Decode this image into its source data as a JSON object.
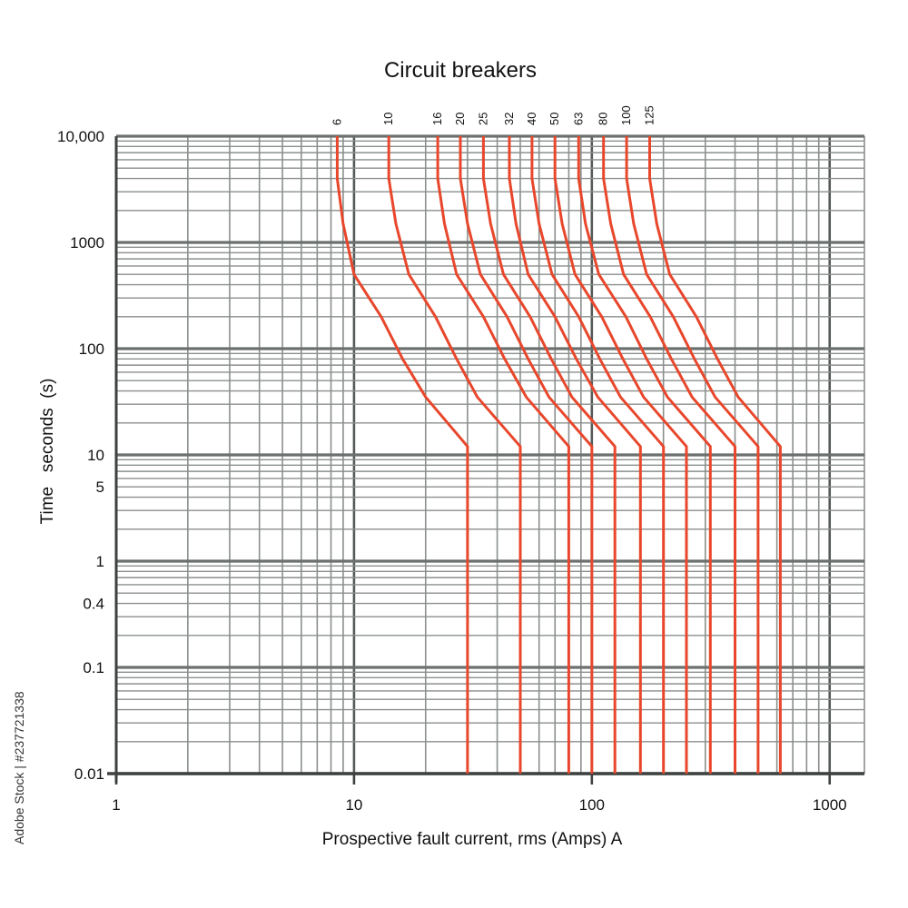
{
  "chart_data": {
    "type": "line",
    "title": "Circuit breakers",
    "xlabel": "Prospective fault current, rms (Amps) A",
    "ylabel": "Time   seconds  (s)",
    "x_scale": "log",
    "y_scale": "log",
    "xlim": [
      1,
      1400
    ],
    "ylim": [
      0.01,
      10000
    ],
    "x_tick_labels": [
      {
        "value": 1,
        "label": "1"
      },
      {
        "value": 10,
        "label": "10"
      },
      {
        "value": 100,
        "label": "100"
      },
      {
        "value": 1000,
        "label": "1000"
      }
    ],
    "y_tick_labels": [
      {
        "value": 10000,
        "label": "10,000"
      },
      {
        "value": 1000,
        "label": "1000"
      },
      {
        "value": 100,
        "label": "100"
      },
      {
        "value": 10,
        "label": "10"
      },
      {
        "value": 5,
        "label": "5"
      },
      {
        "value": 1,
        "label": "1"
      },
      {
        "value": 0.4,
        "label": "0.4"
      },
      {
        "value": 0.1,
        "label": "0.1"
      },
      {
        "value": 0.01,
        "label": "0.01"
      }
    ],
    "grid": true,
    "line_color": "#e8472c",
    "grid_color": "#8a8f8c",
    "series": [
      {
        "name": "6",
        "points": [
          [
            8.5,
            10000
          ],
          [
            8.5,
            4000
          ],
          [
            9,
            1500
          ],
          [
            10,
            500
          ],
          [
            13,
            200
          ],
          [
            16,
            80
          ],
          [
            20,
            35
          ],
          [
            30,
            12
          ],
          [
            30,
            0.01
          ]
        ]
      },
      {
        "name": "10",
        "points": [
          [
            14,
            10000
          ],
          [
            14,
            4000
          ],
          [
            15,
            1500
          ],
          [
            17,
            500
          ],
          [
            22,
            200
          ],
          [
            27,
            80
          ],
          [
            33,
            35
          ],
          [
            50,
            12
          ],
          [
            50,
            0.01
          ]
        ]
      },
      {
        "name": "16",
        "points": [
          [
            22.5,
            10000
          ],
          [
            22.5,
            4000
          ],
          [
            24,
            1500
          ],
          [
            27,
            500
          ],
          [
            35,
            200
          ],
          [
            43,
            80
          ],
          [
            53,
            35
          ],
          [
            80,
            12
          ],
          [
            80,
            0.01
          ]
        ]
      },
      {
        "name": "20",
        "points": [
          [
            28,
            10000
          ],
          [
            28,
            4000
          ],
          [
            30,
            1500
          ],
          [
            34,
            500
          ],
          [
            44,
            200
          ],
          [
            54,
            80
          ],
          [
            66,
            35
          ],
          [
            100,
            12
          ],
          [
            100,
            0.01
          ]
        ]
      },
      {
        "name": "25",
        "points": [
          [
            35,
            10000
          ],
          [
            35,
            4000
          ],
          [
            37.5,
            1500
          ],
          [
            42.5,
            500
          ],
          [
            55,
            200
          ],
          [
            67.5,
            80
          ],
          [
            82.5,
            35
          ],
          [
            125,
            12
          ],
          [
            125,
            0.01
          ]
        ]
      },
      {
        "name": "32",
        "points": [
          [
            45,
            10000
          ],
          [
            45,
            4000
          ],
          [
            48,
            1500
          ],
          [
            54,
            500
          ],
          [
            70,
            200
          ],
          [
            86,
            80
          ],
          [
            106,
            35
          ],
          [
            160,
            12
          ],
          [
            160,
            0.01
          ]
        ]
      },
      {
        "name": "40",
        "points": [
          [
            56,
            10000
          ],
          [
            56,
            4000
          ],
          [
            60,
            1500
          ],
          [
            68,
            500
          ],
          [
            88,
            200
          ],
          [
            108,
            80
          ],
          [
            132,
            35
          ],
          [
            200,
            12
          ],
          [
            200,
            0.01
          ]
        ]
      },
      {
        "name": "50",
        "points": [
          [
            70,
            10000
          ],
          [
            70,
            4000
          ],
          [
            75,
            1500
          ],
          [
            85,
            500
          ],
          [
            110,
            200
          ],
          [
            135,
            80
          ],
          [
            165,
            35
          ],
          [
            250,
            12
          ],
          [
            250,
            0.01
          ]
        ]
      },
      {
        "name": "63",
        "points": [
          [
            88,
            10000
          ],
          [
            88,
            4000
          ],
          [
            94,
            1500
          ],
          [
            107,
            500
          ],
          [
            139,
            200
          ],
          [
            170,
            80
          ],
          [
            208,
            35
          ],
          [
            315,
            12
          ],
          [
            315,
            0.01
          ]
        ]
      },
      {
        "name": "80",
        "points": [
          [
            112,
            10000
          ],
          [
            112,
            4000
          ],
          [
            120,
            1500
          ],
          [
            136,
            500
          ],
          [
            176,
            200
          ],
          [
            216,
            80
          ],
          [
            264,
            35
          ],
          [
            400,
            12
          ],
          [
            400,
            0.01
          ]
        ]
      },
      {
        "name": "100",
        "points": [
          [
            140,
            10000
          ],
          [
            140,
            4000
          ],
          [
            150,
            1500
          ],
          [
            170,
            500
          ],
          [
            220,
            200
          ],
          [
            270,
            80
          ],
          [
            330,
            35
          ],
          [
            500,
            12
          ],
          [
            500,
            0.01
          ]
        ]
      },
      {
        "name": "125",
        "points": [
          [
            175,
            10000
          ],
          [
            175,
            4000
          ],
          [
            187.5,
            1500
          ],
          [
            212.5,
            500
          ],
          [
            275,
            200
          ],
          [
            337.5,
            80
          ],
          [
            412.5,
            35
          ],
          [
            620,
            12
          ],
          [
            620,
            0.01
          ]
        ]
      }
    ]
  },
  "watermark": {
    "text": "Adobe Stock | #237721338"
  }
}
